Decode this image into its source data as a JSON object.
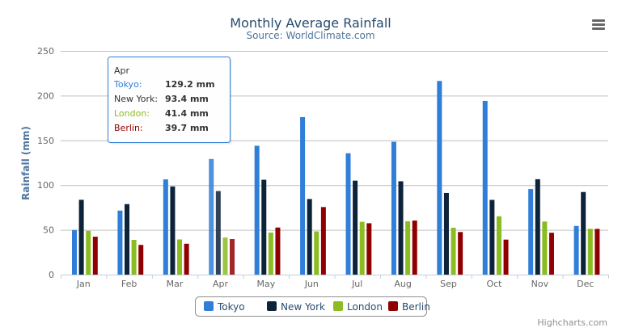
{
  "chart_data": {
    "type": "bar",
    "title": "Monthly Average Rainfall",
    "subtitle": "Source: WorldClimate.com",
    "ylabel": "Rainfall (mm)",
    "xlabel": "",
    "ylim": [
      0,
      250
    ],
    "yticks": [
      0,
      50,
      100,
      150,
      200,
      250
    ],
    "grid": true,
    "legend_placement": "bottom-center",
    "categories": [
      "Jan",
      "Feb",
      "Mar",
      "Apr",
      "May",
      "Jun",
      "Jul",
      "Aug",
      "Sep",
      "Oct",
      "Nov",
      "Dec"
    ],
    "series": [
      {
        "name": "Tokyo",
        "color": "#2f7ed8",
        "values": [
          49.9,
          71.5,
          106.4,
          129.2,
          144.0,
          176.0,
          135.6,
          148.5,
          216.4,
          194.1,
          95.6,
          54.4
        ]
      },
      {
        "name": "New York",
        "color": "#0d233a",
        "values": [
          83.6,
          78.8,
          98.5,
          93.4,
          106.0,
          84.5,
          105.0,
          104.3,
          91.2,
          83.5,
          106.6,
          92.3
        ]
      },
      {
        "name": "London",
        "color": "#8bbc21",
        "values": [
          48.9,
          38.8,
          39.3,
          41.4,
          47.0,
          48.3,
          59.0,
          59.6,
          52.4,
          65.2,
          59.3,
          51.2
        ]
      },
      {
        "name": "Berlin",
        "color": "#910000",
        "values": [
          42.4,
          33.2,
          34.5,
          39.7,
          52.6,
          75.5,
          57.4,
          60.4,
          47.6,
          39.1,
          46.8,
          51.1
        ]
      }
    ],
    "tooltip": {
      "header": "Apr",
      "rows": [
        {
          "label": "Tokyo:",
          "value": "129.2 mm"
        },
        {
          "label": "New York:",
          "value": "93.4 mm"
        },
        {
          "label": "London:",
          "value": "41.4 mm"
        },
        {
          "label": "Berlin:",
          "value": "39.7 mm"
        }
      ]
    }
  },
  "credits": "Highcharts.com",
  "menu_icon": "hamburger-menu-icon"
}
